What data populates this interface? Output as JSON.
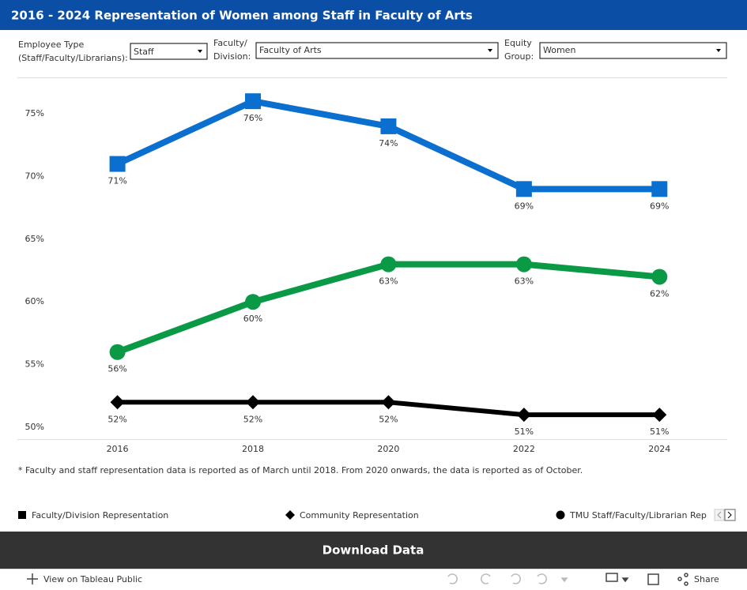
{
  "header": {
    "title": "2016 - 2024 Representation of  Women among Staff in Faculty of Arts"
  },
  "filters": [
    {
      "label": [
        "Employee Type",
        "(Staff/Faculty/Librarians):"
      ],
      "value": "Staff"
    },
    {
      "label": [
        "Faculty/",
        "Division:"
      ],
      "value": "Faculty of Arts"
    },
    {
      "label": [
        "Equity",
        "Group:"
      ],
      "value": "Women"
    }
  ],
  "chart_data": {
    "type": "line",
    "x": [
      2016,
      2018,
      2020,
      2022,
      2024
    ],
    "xlim": [
      2014.5,
      2025
    ],
    "xticks": [
      2016,
      2018,
      2020,
      2022,
      2024
    ],
    "ylim": [
      49,
      78
    ],
    "yticks": [
      {
        "value": 50,
        "label": "50%"
      },
      {
        "value": 55,
        "label": "55%"
      },
      {
        "value": 60,
        "label": "60%"
      },
      {
        "value": 65,
        "label": "65%"
      },
      {
        "value": 70,
        "label": "70%"
      },
      {
        "value": 75,
        "label": "75%"
      }
    ],
    "series": [
      {
        "name": "Faculty/Division Representation",
        "color": "#0b6fcf",
        "marker": "square",
        "values": [
          71,
          76,
          74,
          69,
          69
        ],
        "value_labels": [
          "71%",
          "76%",
          "74%",
          "69%",
          "69%"
        ]
      },
      {
        "name": "Community Representation",
        "color": "#000000",
        "marker": "diamond",
        "values": [
          52,
          52,
          52,
          51,
          51
        ],
        "value_labels": [
          "52%",
          "52%",
          "52%",
          "51%",
          "51%"
        ]
      },
      {
        "name": "TMU Staff/Faculty/Librarian Rep",
        "color": "#0a9a46",
        "marker": "circle",
        "values": [
          56,
          60,
          63,
          63,
          62
        ],
        "value_labels": [
          "56%",
          "60%",
          "63%",
          "63%",
          "62%"
        ]
      }
    ],
    "note": "* Faculty and staff representation data is reported as of March until 2018. From 2020 onwards, the data is reported as of October."
  },
  "download": "Download Data",
  "toolbar": {
    "view": "View on Tableau Public",
    "share": "Share"
  }
}
